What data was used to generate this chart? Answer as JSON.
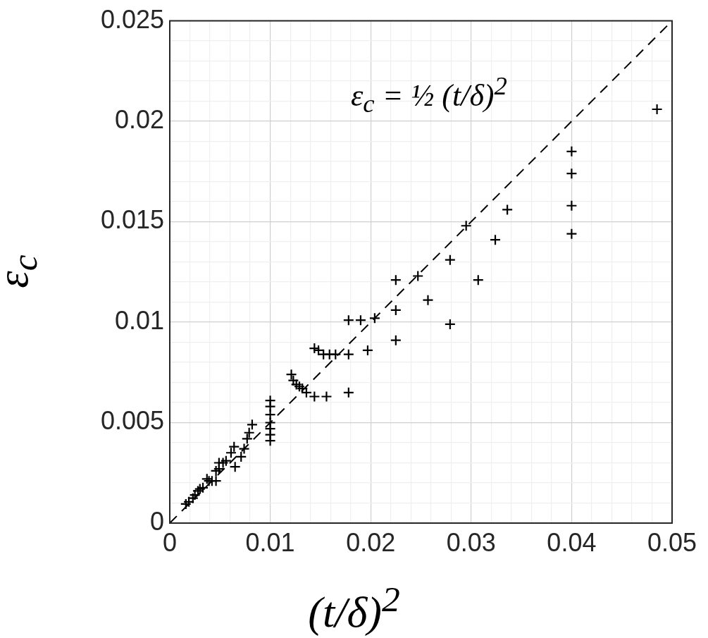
{
  "chart_data": {
    "type": "scatter",
    "xlabel": "(t/δ)$^{2}$",
    "ylabel": "ε$_{c}$",
    "xlim": [
      0,
      0.05
    ],
    "ylim": [
      0,
      0.025
    ],
    "xticks": [
      0,
      {
        "value": 0.002,
        "label": null
      },
      {
        "value": 0.004,
        "label": null
      },
      {
        "value": 0.006,
        "label": null
      },
      {
        "value": 0.008,
        "label": null
      },
      0.01,
      {
        "value": 0.012,
        "label": null
      },
      {
        "value": 0.014,
        "label": null
      },
      {
        "value": 0.016,
        "label": null
      },
      {
        "value": 0.018,
        "label": null
      },
      0.02,
      {
        "value": 0.022,
        "label": null
      },
      {
        "value": 0.024,
        "label": null
      },
      {
        "value": 0.026,
        "label": null
      },
      {
        "value": 0.028,
        "label": null
      },
      0.03,
      {
        "value": 0.032,
        "label": null
      },
      {
        "value": 0.034,
        "label": null
      },
      {
        "value": 0.036,
        "label": null
      },
      {
        "value": 0.038,
        "label": null
      },
      0.04,
      {
        "value": 0.042,
        "label": null
      },
      {
        "value": 0.044,
        "label": null
      },
      {
        "value": 0.046,
        "label": null
      },
      {
        "value": 0.048,
        "label": null
      },
      0.05
    ],
    "yticks": [
      0,
      {
        "value": 0.001,
        "label": null
      },
      {
        "value": 0.002,
        "label": null
      },
      {
        "value": 0.003,
        "label": null
      },
      {
        "value": 0.004,
        "label": null
      },
      0.005,
      {
        "value": 0.006,
        "label": null
      },
      {
        "value": 0.007,
        "label": null
      },
      {
        "value": 0.008,
        "label": null
      },
      {
        "value": 0.009,
        "label": null
      },
      0.01,
      {
        "value": 0.011,
        "label": null
      },
      {
        "value": 0.012,
        "label": null
      },
      {
        "value": 0.013,
        "label": null
      },
      {
        "value": 0.014,
        "label": null
      },
      0.015,
      {
        "value": 0.016,
        "label": null
      },
      {
        "value": 0.017,
        "label": null
      },
      {
        "value": 0.018,
        "label": null
      },
      {
        "value": 0.019,
        "label": null
      },
      0.02,
      {
        "value": 0.021,
        "label": null
      },
      {
        "value": 0.022,
        "label": null
      },
      {
        "value": 0.023,
        "label": null
      },
      {
        "value": 0.024,
        "label": null
      },
      0.025
    ],
    "grid": true,
    "legend": false,
    "series": [
      {
        "color": "#000000",
        "marker": "cross",
        "x": [
          0.0016,
          0.0019,
          0.0023,
          0.0025,
          0.0028,
          0.003,
          0.0033,
          0.0037,
          0.0039,
          0.0042,
          0.0046,
          0.0046,
          0.0049,
          0.0049,
          0.0053,
          0.0056,
          0.0061,
          0.0064,
          0.0065,
          0.0071,
          0.0074,
          0.0077,
          0.0079,
          0.0082,
          0.01,
          0.01,
          0.01,
          0.01,
          0.01,
          0.01,
          0.01,
          0.0121,
          0.0123,
          0.0126,
          0.0129,
          0.0132,
          0.0136,
          0.0144,
          0.0156,
          0.0178,
          0.0144,
          0.0148,
          0.0153,
          0.0159,
          0.0165,
          0.0178,
          0.0197,
          0.0225,
          0.0178,
          0.019,
          0.0204,
          0.0225,
          0.0336,
          0.0295,
          0.0324,
          0.0279,
          0.0247,
          0.0225,
          0.0307,
          0.0257,
          0.0279,
          0.0485,
          0.04,
          0.04,
          0.04,
          0.04
        ],
        "values": [
          0.00095,
          0.00106,
          0.00124,
          0.0014,
          0.0016,
          0.0017,
          0.00176,
          0.0022,
          0.0021,
          0.0021,
          0.0021,
          0.0026,
          0.0027,
          0.003,
          0.003,
          0.0031,
          0.0035,
          0.0038,
          0.0028,
          0.0033,
          0.0037,
          0.0042,
          0.0045,
          0.0049,
          0.0061,
          0.0058,
          0.0054,
          0.005,
          0.0047,
          0.0044,
          0.0041,
          0.0074,
          0.0071,
          0.0069,
          0.0068,
          0.0067,
          0.0065,
          0.0063,
          0.0063,
          0.0065,
          0.0087,
          0.0086,
          0.0084,
          0.0084,
          0.0084,
          0.0084,
          0.0086,
          0.0091,
          0.0101,
          0.0101,
          0.0102,
          0.0106,
          0.0156,
          0.0148,
          0.0141,
          0.0131,
          0.0123,
          0.0121,
          0.0121,
          0.0111,
          0.0099,
          0.0206,
          0.0185,
          0.0174,
          0.0158,
          0.0144
        ]
      },
      {
        "type": "line",
        "name": "ε$_{c}$ = ½ (t/δ)$^{2}$",
        "color": "#000000",
        "line_style": "dashed",
        "marker": "none",
        "x": [
          0,
          0.05
        ],
        "values": [
          0,
          0.025
        ]
      }
    ]
  }
}
